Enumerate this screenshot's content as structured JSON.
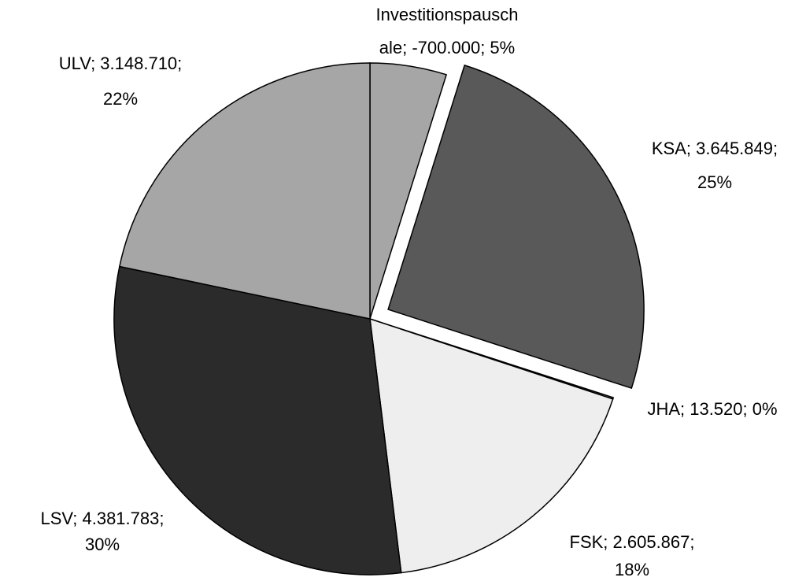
{
  "chart_data": {
    "type": "pie",
    "values": [
      -700000,
      3645849,
      13520,
      2605867,
      4381783,
      3148710
    ],
    "value_labels": [
      [
        "Investitionspausch",
        "ale; -700.000; 5%"
      ],
      [
        "KSA; 3.645.849;",
        "25%"
      ],
      [
        "JHA; 13.520; 0%"
      ],
      [
        "FSK; 2.605.867;",
        "18%"
      ],
      [
        "LSV; 4.381.783;",
        "30%"
      ],
      [
        "ULV; 3.148.710;",
        "22%"
      ]
    ],
    "colors": [
      "#a6a6a6",
      "#595959",
      "#7f7f7f",
      "#eeeeee",
      "#2b2b2b",
      "#a6a6a6"
    ],
    "exploded": [
      1
    ]
  }
}
